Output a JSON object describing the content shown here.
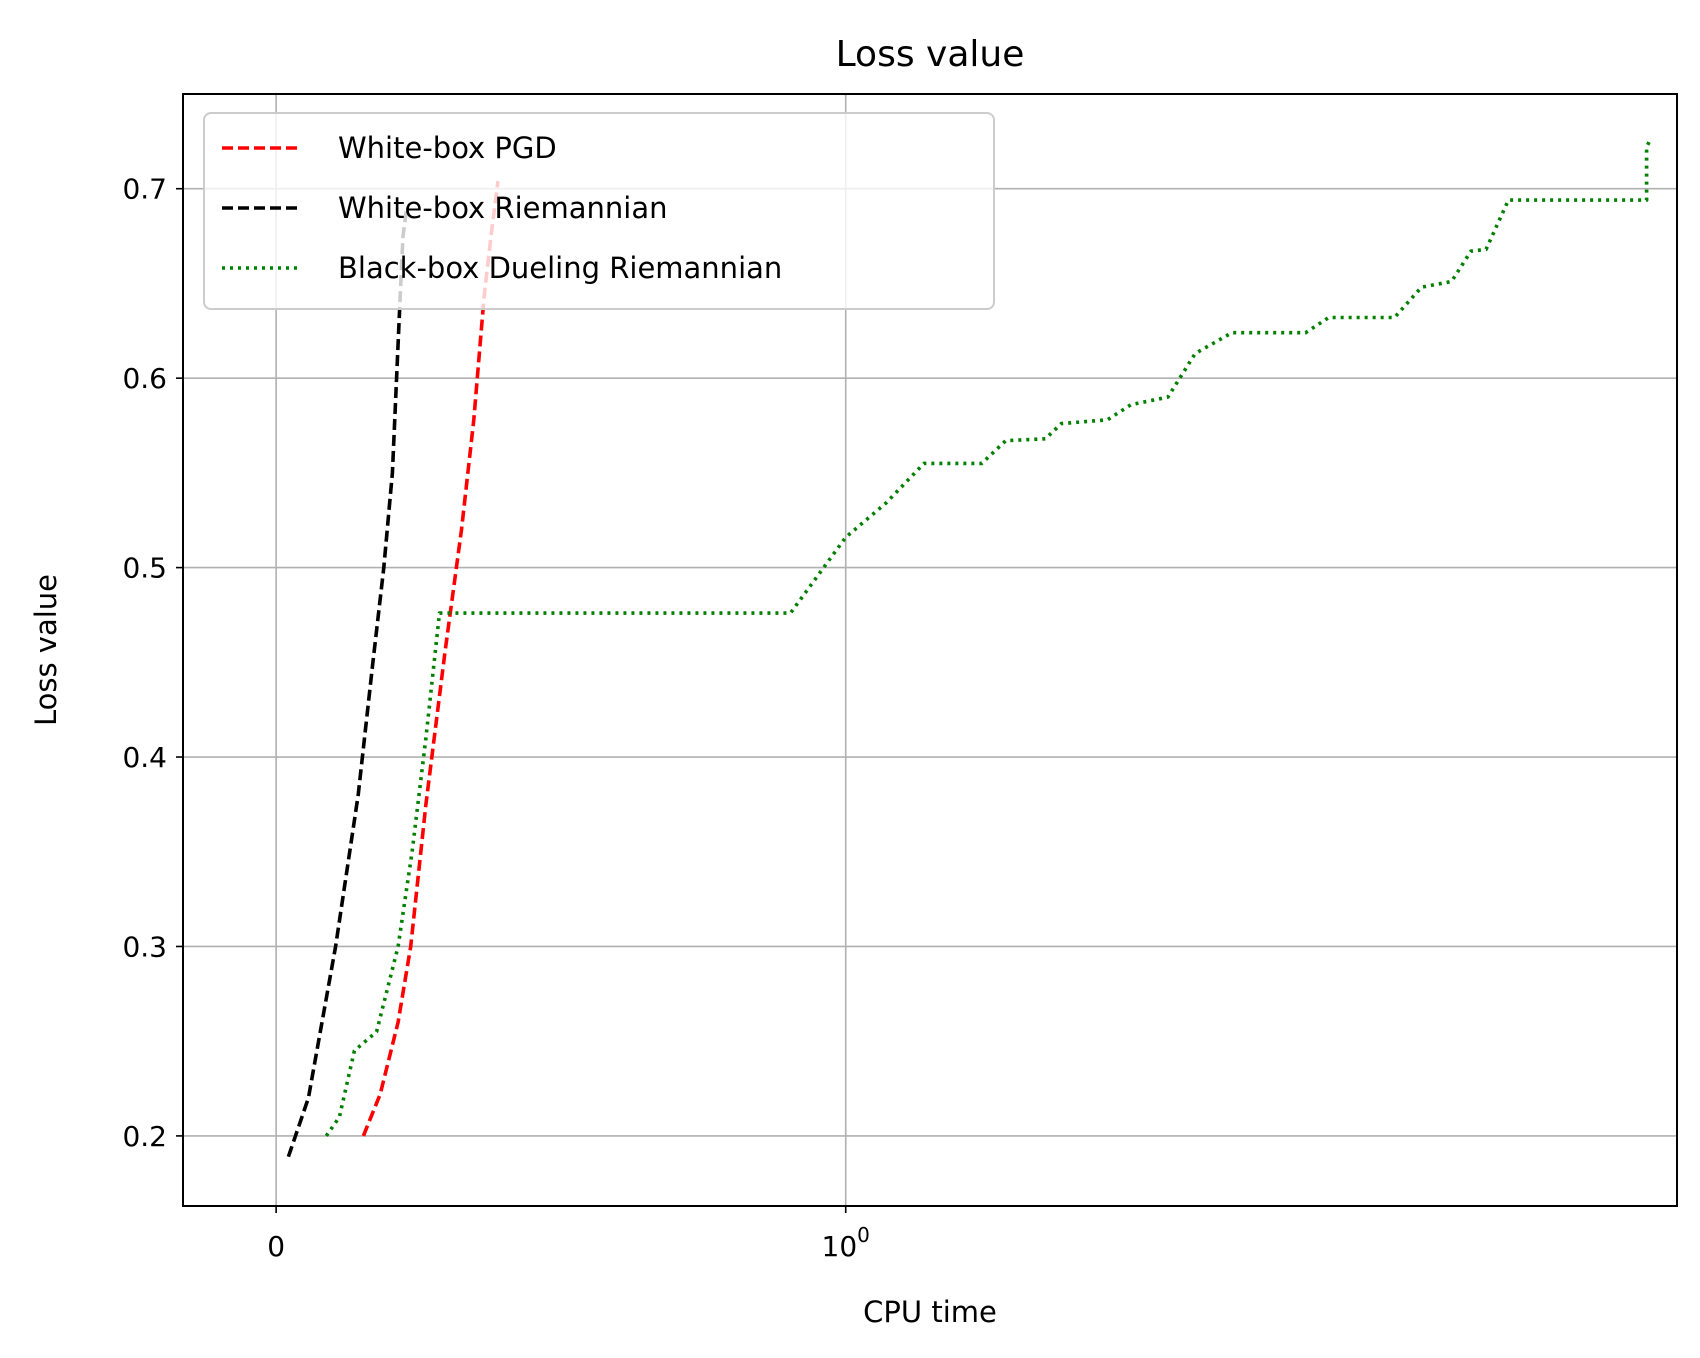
{
  "chart_data": {
    "type": "line",
    "title": "Loss value",
    "xlabel": "CPU time",
    "ylabel": "Loss value",
    "xscale": "symlog",
    "xlim": [
      -0.12,
      4.5
    ],
    "ylim": [
      0.163,
      0.75
    ],
    "grid": true,
    "legend_position": "top-left",
    "x_ticks": [
      {
        "value": 0,
        "base": "0",
        "exp": ""
      },
      {
        "value": 1,
        "base": "10",
        "exp": "0"
      }
    ],
    "y_ticks": [
      {
        "value": 0.2,
        "label": "0.2"
      },
      {
        "value": 0.3,
        "label": "0.3"
      },
      {
        "value": 0.4,
        "label": "0.4"
      },
      {
        "value": 0.5,
        "label": "0.5"
      },
      {
        "value": 0.6,
        "label": "0.6"
      },
      {
        "value": 0.7,
        "label": "0.7"
      }
    ],
    "series": [
      {
        "name": "White-box PGD",
        "color": "#ff0000",
        "dash": "dashed",
        "points": [
          [
            0.112,
            0.2
          ],
          [
            0.135,
            0.222
          ],
          [
            0.16,
            0.26
          ],
          [
            0.178,
            0.3
          ],
          [
            0.2,
            0.375
          ],
          [
            0.228,
            0.455
          ],
          [
            0.253,
            0.52
          ],
          [
            0.272,
            0.578
          ],
          [
            0.288,
            0.643
          ],
          [
            0.3,
            0.678
          ],
          [
            0.31,
            0.704
          ]
        ]
      },
      {
        "name": "White-box Riemannian",
        "color": "#000000",
        "dash": "dashed",
        "points": [
          [
            0.015,
            0.189
          ],
          [
            0.04,
            0.22
          ],
          [
            0.075,
            0.3
          ],
          [
            0.105,
            0.38
          ],
          [
            0.125,
            0.45
          ],
          [
            0.14,
            0.5
          ],
          [
            0.152,
            0.55
          ],
          [
            0.162,
            0.635
          ],
          [
            0.167,
            0.675
          ],
          [
            0.172,
            0.689
          ]
        ]
      },
      {
        "name": "Black-box Dueling Riemannian",
        "color": "#008000",
        "dash": "dotted",
        "points": [
          [
            0.063,
            0.2
          ],
          [
            0.08,
            0.21
          ],
          [
            0.1,
            0.245
          ],
          [
            0.13,
            0.255
          ],
          [
            0.16,
            0.3
          ],
          [
            0.18,
            0.35
          ],
          [
            0.2,
            0.41
          ],
          [
            0.22,
            0.476
          ],
          [
            0.35,
            0.476
          ],
          [
            0.5,
            0.476
          ],
          [
            0.7,
            0.476
          ],
          [
            0.87,
            0.476
          ],
          [
            1.0,
            0.516
          ],
          [
            1.1,
            0.534
          ],
          [
            1.2,
            0.555
          ],
          [
            1.3,
            0.555
          ],
          [
            1.36,
            0.555
          ],
          [
            1.43,
            0.567
          ],
          [
            1.55,
            0.568
          ],
          [
            1.6,
            0.576
          ],
          [
            1.75,
            0.578
          ],
          [
            1.83,
            0.586
          ],
          [
            1.96,
            0.59
          ],
          [
            2.06,
            0.613
          ],
          [
            2.2,
            0.624
          ],
          [
            2.5,
            0.624
          ],
          [
            2.6,
            0.632
          ],
          [
            2.9,
            0.632
          ],
          [
            3.03,
            0.648
          ],
          [
            3.18,
            0.651
          ],
          [
            3.28,
            0.667
          ],
          [
            3.36,
            0.668
          ],
          [
            3.48,
            0.694
          ],
          [
            3.8,
            0.694
          ],
          [
            4.3,
            0.694
          ],
          [
            4.3,
            0.722
          ],
          [
            4.33,
            0.727
          ]
        ]
      }
    ]
  }
}
